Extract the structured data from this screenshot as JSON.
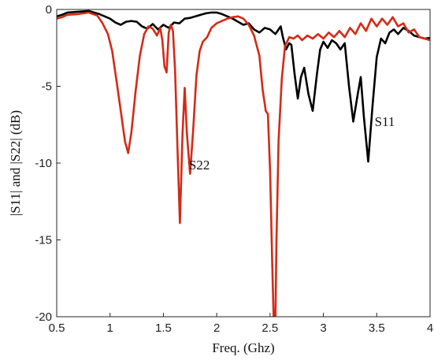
{
  "chart_data": {
    "type": "line",
    "title": "",
    "xlabel": "Freq. (Ghz)",
    "ylabel": "|S11| and |S22| (dB)",
    "xlim": [
      0.5,
      4
    ],
    "ylim": [
      -20,
      0
    ],
    "xticks": [
      "0.5",
      "1",
      "1.5",
      "2",
      "2.5",
      "3",
      "3.5",
      "4"
    ],
    "yticks": [
      "0",
      "-5",
      "-10",
      "-15",
      "-20"
    ],
    "grid": false,
    "legend": "none",
    "annotations": [
      {
        "text": "S11",
        "x": 3.48,
        "y": -7.6
      },
      {
        "text": "S22",
        "x": 1.74,
        "y": -10.4
      }
    ],
    "series": [
      {
        "label": "S11",
        "color": "#000000",
        "points": [
          [
            0.5,
            -0.45
          ],
          [
            0.55,
            -0.35
          ],
          [
            0.6,
            -0.2
          ],
          [
            0.7,
            -0.15
          ],
          [
            0.8,
            -0.1
          ],
          [
            0.9,
            -0.3
          ],
          [
            1.0,
            -0.6
          ],
          [
            1.05,
            -0.85
          ],
          [
            1.1,
            -1.0
          ],
          [
            1.15,
            -0.8
          ],
          [
            1.2,
            -0.75
          ],
          [
            1.25,
            -0.8
          ],
          [
            1.3,
            -1.1
          ],
          [
            1.35,
            -1.25
          ],
          [
            1.4,
            -0.95
          ],
          [
            1.45,
            -1.3
          ],
          [
            1.5,
            -1.0
          ],
          [
            1.55,
            -1.2
          ],
          [
            1.6,
            -0.85
          ],
          [
            1.65,
            -0.9
          ],
          [
            1.7,
            -0.6
          ],
          [
            1.75,
            -0.55
          ],
          [
            1.8,
            -0.45
          ],
          [
            1.85,
            -0.35
          ],
          [
            1.9,
            -0.25
          ],
          [
            1.95,
            -0.2
          ],
          [
            2.0,
            -0.2
          ],
          [
            2.05,
            -0.3
          ],
          [
            2.1,
            -0.45
          ],
          [
            2.15,
            -0.6
          ],
          [
            2.2,
            -0.8
          ],
          [
            2.25,
            -1.0
          ],
          [
            2.3,
            -0.9
          ],
          [
            2.35,
            -1.3
          ],
          [
            2.4,
            -1.5
          ],
          [
            2.45,
            -1.2
          ],
          [
            2.5,
            -1.3
          ],
          [
            2.55,
            -1.6
          ],
          [
            2.6,
            -1.1
          ],
          [
            2.62,
            -1.8
          ],
          [
            2.65,
            -2.6
          ],
          [
            2.68,
            -2.2
          ],
          [
            2.7,
            -2.3
          ],
          [
            2.73,
            -4.2
          ],
          [
            2.76,
            -5.8
          ],
          [
            2.79,
            -4.4
          ],
          [
            2.82,
            -3.8
          ],
          [
            2.86,
            -5.5
          ],
          [
            2.9,
            -6.6
          ],
          [
            2.94,
            -4.2
          ],
          [
            2.97,
            -2.6
          ],
          [
            3.0,
            -2.1
          ],
          [
            3.04,
            -2.5
          ],
          [
            3.08,
            -2.0
          ],
          [
            3.12,
            -2.2
          ],
          [
            3.16,
            -2.6
          ],
          [
            3.2,
            -2.2
          ],
          [
            3.24,
            -5.0
          ],
          [
            3.28,
            -7.3
          ],
          [
            3.32,
            -5.6
          ],
          [
            3.35,
            -4.4
          ],
          [
            3.38,
            -7.0
          ],
          [
            3.42,
            -9.9
          ],
          [
            3.46,
            -6.3
          ],
          [
            3.5,
            -3.1
          ],
          [
            3.54,
            -1.9
          ],
          [
            3.58,
            -2.2
          ],
          [
            3.62,
            -1.5
          ],
          [
            3.66,
            -1.3
          ],
          [
            3.7,
            -1.6
          ],
          [
            3.75,
            -1.2
          ],
          [
            3.8,
            -1.4
          ],
          [
            3.85,
            -1.7
          ],
          [
            3.9,
            -1.8
          ],
          [
            3.95,
            -1.9
          ],
          [
            4.0,
            -1.85
          ]
        ]
      },
      {
        "label": "S22",
        "color": "#d42a17",
        "points": [
          [
            0.5,
            -0.6
          ],
          [
            0.55,
            -0.5
          ],
          [
            0.6,
            -0.35
          ],
          [
            0.7,
            -0.3
          ],
          [
            0.8,
            -0.2
          ],
          [
            0.88,
            -0.4
          ],
          [
            0.93,
            -0.9
          ],
          [
            0.98,
            -1.6
          ],
          [
            1.02,
            -2.7
          ],
          [
            1.06,
            -4.6
          ],
          [
            1.1,
            -6.6
          ],
          [
            1.14,
            -8.6
          ],
          [
            1.17,
            -9.35
          ],
          [
            1.2,
            -8.0
          ],
          [
            1.24,
            -5.3
          ],
          [
            1.28,
            -3.0
          ],
          [
            1.32,
            -1.6
          ],
          [
            1.36,
            -1.1
          ],
          [
            1.4,
            -1.25
          ],
          [
            1.44,
            -1.7
          ],
          [
            1.47,
            -1.2
          ],
          [
            1.49,
            -2.0
          ],
          [
            1.51,
            -3.7
          ],
          [
            1.53,
            -4.1
          ],
          [
            1.55,
            -1.5
          ],
          [
            1.57,
            -1.0
          ],
          [
            1.59,
            -1.4
          ],
          [
            1.61,
            -4.0
          ],
          [
            1.63,
            -8.5
          ],
          [
            1.655,
            -13.9
          ],
          [
            1.68,
            -8.0
          ],
          [
            1.7,
            -5.1
          ],
          [
            1.72,
            -8.0
          ],
          [
            1.75,
            -10.7
          ],
          [
            1.78,
            -7.8
          ],
          [
            1.81,
            -4.3
          ],
          [
            1.84,
            -2.7
          ],
          [
            1.87,
            -2.1
          ],
          [
            1.91,
            -1.8
          ],
          [
            1.95,
            -1.2
          ],
          [
            2.0,
            -0.9
          ],
          [
            2.05,
            -0.75
          ],
          [
            2.1,
            -0.6
          ],
          [
            2.15,
            -0.5
          ],
          [
            2.2,
            -0.45
          ],
          [
            2.25,
            -0.6
          ],
          [
            2.3,
            -1.0
          ],
          [
            2.35,
            -1.7
          ],
          [
            2.4,
            -3.0
          ],
          [
            2.43,
            -5.2
          ],
          [
            2.46,
            -6.6
          ],
          [
            2.48,
            -6.8
          ],
          [
            2.5,
            -10.5
          ],
          [
            2.52,
            -16.5
          ],
          [
            2.535,
            -20.5
          ],
          [
            2.55,
            -20.5
          ],
          [
            2.56,
            -15.0
          ],
          [
            2.58,
            -8.5
          ],
          [
            2.61,
            -4.5
          ],
          [
            2.64,
            -2.4
          ],
          [
            2.68,
            -1.8
          ],
          [
            2.72,
            -1.9
          ],
          [
            2.76,
            -1.7
          ],
          [
            2.8,
            -2.0
          ],
          [
            2.85,
            -1.7
          ],
          [
            2.9,
            -1.9
          ],
          [
            2.95,
            -1.6
          ],
          [
            3.0,
            -1.9
          ],
          [
            3.05,
            -1.5
          ],
          [
            3.1,
            -1.8
          ],
          [
            3.15,
            -1.4
          ],
          [
            3.2,
            -1.8
          ],
          [
            3.25,
            -1.2
          ],
          [
            3.3,
            -1.6
          ],
          [
            3.35,
            -0.9
          ],
          [
            3.4,
            -1.4
          ],
          [
            3.45,
            -0.6
          ],
          [
            3.5,
            -1.1
          ],
          [
            3.55,
            -0.6
          ],
          [
            3.6,
            -1.0
          ],
          [
            3.65,
            -0.5
          ],
          [
            3.7,
            -1.1
          ],
          [
            3.75,
            -0.9
          ],
          [
            3.8,
            -1.5
          ],
          [
            3.85,
            -1.3
          ],
          [
            3.9,
            -1.8
          ],
          [
            3.95,
            -1.9
          ],
          [
            4.0,
            -2.0
          ]
        ]
      }
    ],
    "marker": {
      "x": 1.63,
      "y": 0.8,
      "color": "#d95c3a"
    }
  }
}
